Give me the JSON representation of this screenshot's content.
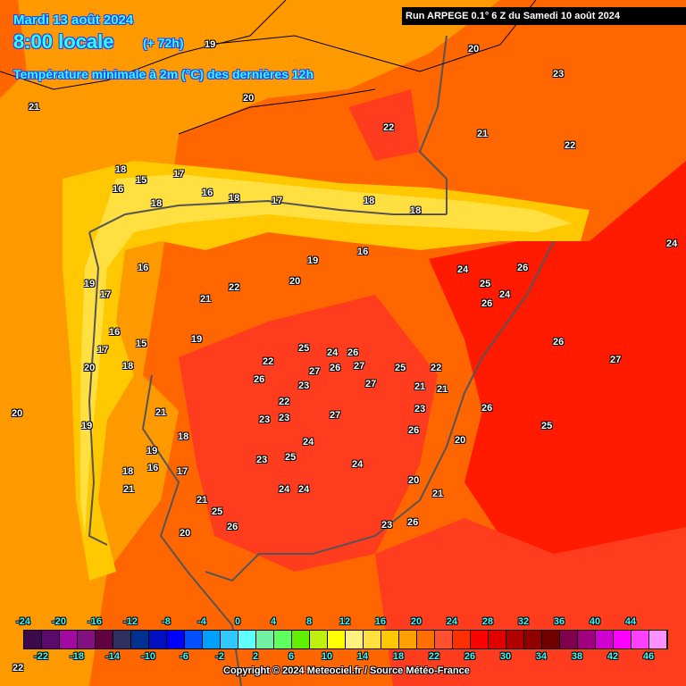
{
  "header": {
    "date": "Mardi 13 août 2024",
    "time": "8:00 locale",
    "lead": "(+ 72h)",
    "title": "Température minimale à 2m (°C) des dernières 12h",
    "run": "Run ARPEGE 0.1° 6 Z du Samedi 10 août 2024"
  },
  "colors": {
    "background": "#ff9900",
    "warm": "#ff6600",
    "hot": "#ff3c1e",
    "mediterranean": "#ff1a00",
    "cool": "#ffc800",
    "cooler": "#ffe040"
  },
  "legend": {
    "top_labels": [
      "-24",
      "-20",
      "-16",
      "-12",
      "-8",
      "-4",
      "0",
      "4",
      "8",
      "12",
      "16",
      "20",
      "24",
      "28",
      "32",
      "36",
      "40",
      "44"
    ],
    "bottom_labels": [
      "-22",
      "-18",
      "-14",
      "-10",
      "-6",
      "-2",
      "2",
      "6",
      "10",
      "14",
      "18",
      "22",
      "26",
      "30",
      "34",
      "38",
      "42",
      "46"
    ],
    "colors": [
      "#3a0a4a",
      "#5a0a6a",
      "#a00aa0",
      "#821080",
      "#600040",
      "#303060",
      "#003090",
      "#0010c0",
      "#0000ff",
      "#0050ff",
      "#00a0ff",
      "#30c8ff",
      "#60ffff",
      "#70f0a0",
      "#60ff60",
      "#60f000",
      "#c0f010",
      "#ffff00",
      "#fff080",
      "#ffe040",
      "#ffc800",
      "#ffa000",
      "#ff7000",
      "#ff5030",
      "#ff3000",
      "#ff0000",
      "#e00000",
      "#b00000",
      "#900000",
      "#700000",
      "#800050",
      "#a00080",
      "#d000d0",
      "#ff00ff",
      "#ff40ff",
      "#ff90ff"
    ]
  },
  "copyright": "Copyright © 2024 Meteociel.fr / Source Météo-France",
  "values": [
    "19",
    "20",
    "21",
    "20",
    "22",
    "21",
    "23",
    "22",
    "24",
    "18",
    "16",
    "15",
    "18",
    "17",
    "16",
    "18",
    "17",
    "18",
    "18",
    "19",
    "16",
    "17",
    "16",
    "17",
    "15",
    "18",
    "16",
    "19",
    "20",
    "22",
    "21",
    "22",
    "23",
    "26",
    "26",
    "25",
    "24",
    "26",
    "27",
    "27",
    "27",
    "27",
    "26",
    "26",
    "25",
    "24",
    "24",
    "26",
    "26",
    "25",
    "22",
    "23",
    "23",
    "25",
    "24",
    "23",
    "24",
    "26",
    "27",
    "25",
    "26",
    "21",
    "20",
    "21",
    "21",
    "22",
    "23",
    "21",
    "20",
    "19",
    "18",
    "19",
    "18",
    "20",
    "17",
    "19",
    "16",
    "21",
    "20",
    "23",
    "25",
    "24",
    "26",
    "22",
    "20",
    "21",
    "24"
  ]
}
